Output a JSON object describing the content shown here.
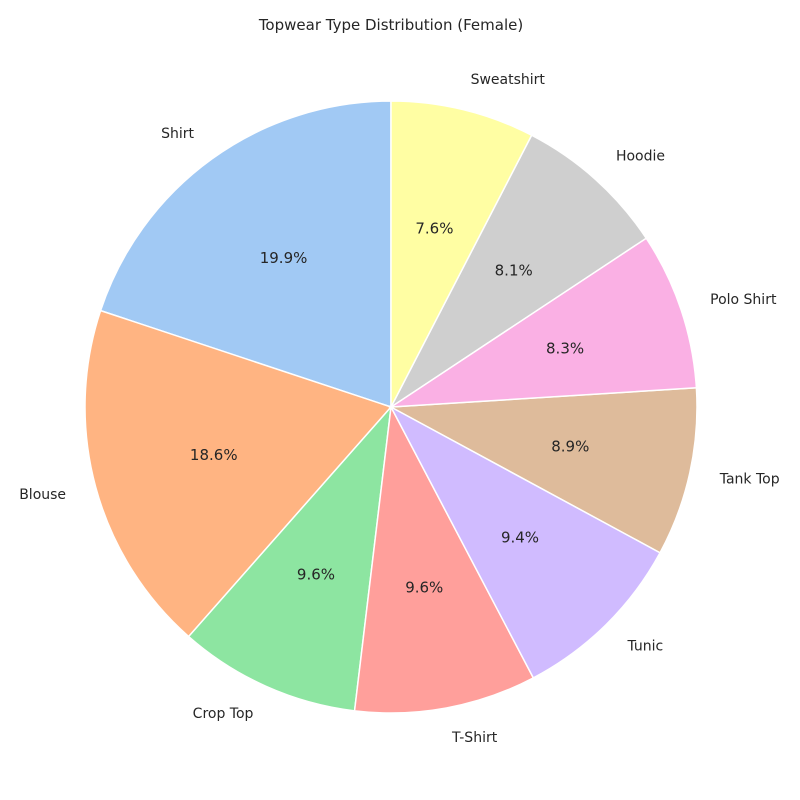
{
  "chart_data": {
    "type": "pie",
    "title": "Topwear Type Distribution (Female)",
    "start_angle_deg": 90,
    "direction": "counterclockwise",
    "slices": [
      {
        "label": "Shirt",
        "value": 19.9,
        "pct_label": "19.9%",
        "color": "#a1c9f4"
      },
      {
        "label": "Blouse",
        "value": 18.6,
        "pct_label": "18.6%",
        "color": "#ffb482"
      },
      {
        "label": "Crop Top",
        "value": 9.6,
        "pct_label": "9.6%",
        "color": "#8de5a1"
      },
      {
        "label": "T-Shirt",
        "value": 9.6,
        "pct_label": "9.6%",
        "color": "#ff9f9b"
      },
      {
        "label": "Tunic",
        "value": 9.4,
        "pct_label": "9.4%",
        "color": "#d0bbff"
      },
      {
        "label": "Tank Top",
        "value": 8.9,
        "pct_label": "8.9%",
        "color": "#debb9b"
      },
      {
        "label": "Polo Shirt",
        "value": 8.3,
        "pct_label": "8.3%",
        "color": "#fab0e4"
      },
      {
        "label": "Hoodie",
        "value": 8.1,
        "pct_label": "8.1%",
        "color": "#cfcfcf"
      },
      {
        "label": "Sweatshirt",
        "value": 7.6,
        "pct_label": "7.6%",
        "color": "#fffea3"
      }
    ]
  }
}
